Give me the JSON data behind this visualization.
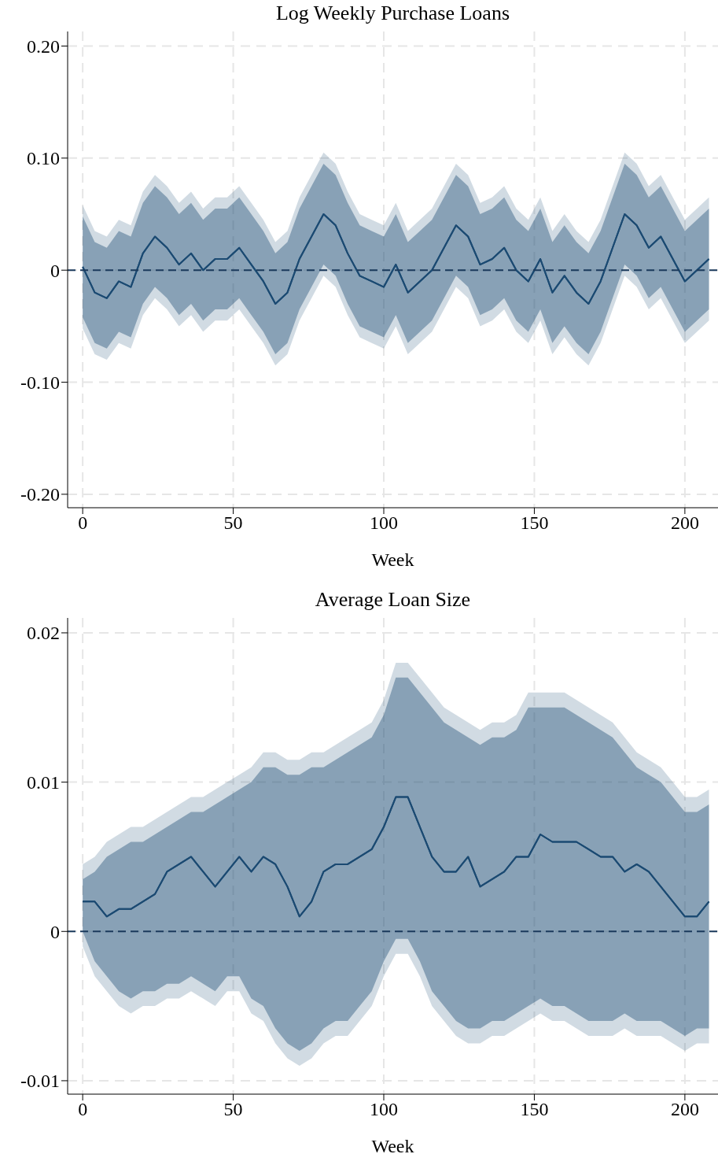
{
  "chart_data": [
    {
      "type": "line",
      "title": "Log Weekly Purchase Loans",
      "xlabel": "Week",
      "grid": true,
      "legend": false,
      "x": [
        0,
        4,
        8,
        12,
        16,
        20,
        24,
        28,
        32,
        36,
        40,
        44,
        48,
        52,
        56,
        60,
        64,
        68,
        72,
        76,
        80,
        84,
        88,
        92,
        96,
        100,
        104,
        108,
        112,
        116,
        120,
        124,
        128,
        132,
        136,
        140,
        144,
        148,
        152,
        156,
        160,
        164,
        168,
        172,
        176,
        180,
        184,
        188,
        192,
        196,
        200,
        204,
        208
      ],
      "xlim": [
        -5,
        211
      ],
      "xticks": [
        0,
        50,
        100,
        150,
        200
      ],
      "ylim": [
        -0.212,
        0.213
      ],
      "yticks": [
        {
          "value": 0.2,
          "label": "0.20"
        },
        {
          "value": 0.1,
          "label": "0.10"
        },
        {
          "value": 0,
          "label": "0"
        },
        {
          "value": -0.1,
          "label": "-0.10"
        },
        {
          "value": -0.2,
          "label": "-0.20"
        }
      ],
      "ref_lines": [
        {
          "axis": "y",
          "value": 0,
          "color": "#1b3a5c",
          "line_style": "dashed"
        }
      ],
      "series": [
        {
          "type": "line",
          "color": "#1b4a72",
          "values": [
            0.003,
            -0.02,
            -0.025,
            -0.01,
            -0.015,
            0.015,
            0.03,
            0.02,
            0.005,
            0.015,
            0,
            0.01,
            0.01,
            0.02,
            0.005,
            -0.01,
            -0.03,
            -0.02,
            0.01,
            0.03,
            0.05,
            0.04,
            0.015,
            -0.005,
            -0.01,
            -0.015,
            0.005,
            -0.02,
            -0.01,
            0,
            0.02,
            0.04,
            0.03,
            0.005,
            0.01,
            0.02,
            0,
            -0.01,
            0.01,
            -0.02,
            -0.005,
            -0.02,
            -0.03,
            -0.01,
            0.02,
            0.05,
            0.04,
            0.02,
            0.03,
            0.01,
            -0.01,
            0,
            0.01
          ],
          "lower": [
            -0.052,
            -0.075,
            -0.08,
            -0.065,
            -0.07,
            -0.04,
            -0.025,
            -0.035,
            -0.05,
            -0.04,
            -0.055,
            -0.045,
            -0.045,
            -0.035,
            -0.05,
            -0.065,
            -0.085,
            -0.075,
            -0.045,
            -0.025,
            -0.005,
            -0.015,
            -0.04,
            -0.06,
            -0.065,
            -0.07,
            -0.05,
            -0.075,
            -0.065,
            -0.055,
            -0.035,
            -0.015,
            -0.025,
            -0.05,
            -0.045,
            -0.035,
            -0.055,
            -0.065,
            -0.045,
            -0.075,
            -0.06,
            -0.075,
            -0.085,
            -0.065,
            -0.035,
            -0.005,
            -0.015,
            -0.035,
            -0.025,
            -0.045,
            -0.065,
            -0.055,
            -0.045
          ],
          "upper": [
            0.058,
            0.035,
            0.03,
            0.045,
            0.04,
            0.07,
            0.085,
            0.075,
            0.06,
            0.07,
            0.055,
            0.065,
            0.065,
            0.075,
            0.06,
            0.045,
            0.025,
            0.035,
            0.065,
            0.085,
            0.105,
            0.095,
            0.07,
            0.05,
            0.045,
            0.04,
            0.06,
            0.035,
            0.045,
            0.055,
            0.075,
            0.095,
            0.085,
            0.06,
            0.065,
            0.075,
            0.055,
            0.045,
            0.065,
            0.035,
            0.05,
            0.035,
            0.025,
            0.045,
            0.075,
            0.105,
            0.095,
            0.075,
            0.085,
            0.065,
            0.045,
            0.055,
            0.065
          ]
        },
        {
          "type": "line",
          "color": "#1b4a72",
          "values": [
            0.003,
            -0.02,
            -0.025,
            -0.01,
            -0.015,
            0.015,
            0.03,
            0.02,
            0.005,
            0.015,
            0,
            0.01,
            0.01,
            0.02,
            0.005,
            -0.01,
            -0.03,
            -0.02,
            0.01,
            0.03,
            0.05,
            0.04,
            0.015,
            -0.005,
            -0.01,
            -0.015,
            0.005,
            -0.02,
            -0.01,
            0,
            0.02,
            0.04,
            0.03,
            0.005,
            0.01,
            0.02,
            0,
            -0.01,
            0.01,
            -0.02,
            -0.005,
            -0.02,
            -0.03,
            -0.01,
            0.02,
            0.05,
            0.04,
            0.02,
            0.03,
            0.01,
            -0.01,
            0,
            0.01
          ],
          "lower": [
            -0.042,
            -0.065,
            -0.07,
            -0.055,
            -0.06,
            -0.03,
            -0.015,
            -0.025,
            -0.04,
            -0.03,
            -0.045,
            -0.035,
            -0.035,
            -0.025,
            -0.04,
            -0.055,
            -0.075,
            -0.065,
            -0.035,
            -0.015,
            0.005,
            -0.005,
            -0.03,
            -0.05,
            -0.055,
            -0.06,
            -0.04,
            -0.065,
            -0.055,
            -0.045,
            -0.025,
            -0.005,
            -0.015,
            -0.04,
            -0.035,
            -0.025,
            -0.045,
            -0.055,
            -0.035,
            -0.065,
            -0.05,
            -0.065,
            -0.075,
            -0.055,
            -0.025,
            0.005,
            -0.005,
            -0.025,
            -0.015,
            -0.035,
            -0.055,
            -0.045,
            -0.035
          ],
          "upper": [
            0.048,
            0.025,
            0.02,
            0.035,
            0.03,
            0.06,
            0.075,
            0.065,
            0.05,
            0.06,
            0.045,
            0.055,
            0.055,
            0.065,
            0.05,
            0.035,
            0.015,
            0.025,
            0.055,
            0.075,
            0.095,
            0.085,
            0.06,
            0.04,
            0.035,
            0.03,
            0.05,
            0.025,
            0.035,
            0.045,
            0.065,
            0.085,
            0.075,
            0.05,
            0.055,
            0.065,
            0.045,
            0.035,
            0.055,
            0.025,
            0.04,
            0.025,
            0.015,
            0.035,
            0.065,
            0.095,
            0.085,
            0.065,
            0.075,
            0.055,
            0.035,
            0.045,
            0.055
          ]
        }
      ]
    },
    {
      "type": "line",
      "title": "Average Loan Size",
      "xlabel": "Week",
      "grid": true,
      "legend": false,
      "x": [
        0,
        4,
        8,
        12,
        16,
        20,
        24,
        28,
        32,
        36,
        40,
        44,
        48,
        52,
        56,
        60,
        64,
        68,
        72,
        76,
        80,
        84,
        88,
        92,
        96,
        100,
        104,
        108,
        112,
        116,
        120,
        124,
        128,
        132,
        136,
        140,
        144,
        148,
        152,
        156,
        160,
        164,
        168,
        172,
        176,
        180,
        184,
        188,
        192,
        196,
        200,
        204,
        208
      ],
      "xlim": [
        -5,
        211
      ],
      "xticks": [
        0,
        50,
        100,
        150,
        200
      ],
      "ylim": [
        -0.0109,
        0.021
      ],
      "yticks": [
        {
          "value": 0.02,
          "label": "0.02"
        },
        {
          "value": 0.01,
          "label": "0.01"
        },
        {
          "value": 0,
          "label": "0"
        },
        {
          "value": -0.01,
          "label": "-0.01"
        }
      ],
      "ref_lines": [
        {
          "axis": "y",
          "value": 0,
          "color": "#1b3a5c",
          "line_style": "dashed"
        }
      ],
      "series": [
        {
          "type": "line",
          "color": "#1b4a72",
          "values": [
            0.002,
            0.002,
            0.001,
            0.0015,
            0.0015,
            0.002,
            0.0025,
            0.004,
            0.0045,
            0.005,
            0.004,
            0.003,
            0.004,
            0.005,
            0.004,
            0.005,
            0.0045,
            0.003,
            0.001,
            0.002,
            0.004,
            0.0045,
            0.0045,
            0.005,
            0.0055,
            0.007,
            0.009,
            0.009,
            0.007,
            0.005,
            0.004,
            0.004,
            0.005,
            0.003,
            0.0035,
            0.004,
            0.005,
            0.005,
            0.0065,
            0.006,
            0.006,
            0.006,
            0.0055,
            0.005,
            0.005,
            0.004,
            0.0045,
            0.004,
            0.003,
            0.002,
            0.001,
            0.001,
            0.002
          ],
          "lower": [
            -0.001,
            -0.003,
            -0.004,
            -0.005,
            -0.0055,
            -0.005,
            -0.005,
            -0.0045,
            -0.0045,
            -0.004,
            -0.0045,
            -0.005,
            -0.004,
            -0.004,
            -0.0055,
            -0.006,
            -0.0075,
            -0.0085,
            -0.009,
            -0.0085,
            -0.0075,
            -0.007,
            -0.007,
            -0.006,
            -0.005,
            -0.003,
            -0.0015,
            -0.0015,
            -0.003,
            -0.005,
            -0.006,
            -0.007,
            -0.0075,
            -0.0075,
            -0.007,
            -0.007,
            -0.0065,
            -0.006,
            -0.0055,
            -0.006,
            -0.006,
            -0.0065,
            -0.007,
            -0.007,
            -0.007,
            -0.0065,
            -0.007,
            -0.007,
            -0.007,
            -0.0075,
            -0.008,
            -0.0075,
            -0.0075
          ],
          "upper": [
            0.0045,
            0.005,
            0.006,
            0.0065,
            0.007,
            0.007,
            0.0075,
            0.008,
            0.0085,
            0.009,
            0.009,
            0.0095,
            0.01,
            0.0105,
            0.011,
            0.012,
            0.012,
            0.0115,
            0.0115,
            0.012,
            0.012,
            0.0125,
            0.013,
            0.0135,
            0.014,
            0.0155,
            0.018,
            0.018,
            0.017,
            0.016,
            0.015,
            0.0145,
            0.014,
            0.0135,
            0.014,
            0.014,
            0.0145,
            0.016,
            0.016,
            0.016,
            0.016,
            0.0155,
            0.015,
            0.0145,
            0.014,
            0.013,
            0.012,
            0.0115,
            0.011,
            0.01,
            0.009,
            0.009,
            0.0095
          ]
        },
        {
          "type": "line",
          "color": "#1b4a72",
          "values": [
            0.002,
            0.002,
            0.001,
            0.0015,
            0.0015,
            0.002,
            0.0025,
            0.004,
            0.0045,
            0.005,
            0.004,
            0.003,
            0.004,
            0.005,
            0.004,
            0.005,
            0.0045,
            0.003,
            0.001,
            0.002,
            0.004,
            0.0045,
            0.0045,
            0.005,
            0.0055,
            0.007,
            0.009,
            0.009,
            0.007,
            0.005,
            0.004,
            0.004,
            0.005,
            0.003,
            0.0035,
            0.004,
            0.005,
            0.005,
            0.0065,
            0.006,
            0.006,
            0.006,
            0.0055,
            0.005,
            0.005,
            0.004,
            0.0045,
            0.004,
            0.003,
            0.002,
            0.001,
            0.001,
            0.002
          ],
          "lower": [
            0,
            -0.002,
            -0.003,
            -0.004,
            -0.0045,
            -0.004,
            -0.004,
            -0.0035,
            -0.0035,
            -0.003,
            -0.0035,
            -0.004,
            -0.003,
            -0.003,
            -0.0045,
            -0.005,
            -0.0065,
            -0.0075,
            -0.008,
            -0.0075,
            -0.0065,
            -0.006,
            -0.006,
            -0.005,
            -0.004,
            -0.002,
            -0.0005,
            -0.0005,
            -0.002,
            -0.004,
            -0.005,
            -0.006,
            -0.0065,
            -0.0065,
            -0.006,
            -0.006,
            -0.0055,
            -0.005,
            -0.0045,
            -0.005,
            -0.005,
            -0.0055,
            -0.006,
            -0.006,
            -0.006,
            -0.0055,
            -0.006,
            -0.006,
            -0.006,
            -0.0065,
            -0.007,
            -0.0065,
            -0.0065
          ],
          "upper": [
            0.0035,
            0.004,
            0.005,
            0.0055,
            0.006,
            0.006,
            0.0065,
            0.007,
            0.0075,
            0.008,
            0.008,
            0.0085,
            0.009,
            0.0095,
            0.01,
            0.011,
            0.011,
            0.0105,
            0.0105,
            0.011,
            0.011,
            0.0115,
            0.012,
            0.0125,
            0.013,
            0.0145,
            0.017,
            0.017,
            0.016,
            0.015,
            0.014,
            0.0135,
            0.013,
            0.0125,
            0.013,
            0.013,
            0.0135,
            0.015,
            0.015,
            0.015,
            0.015,
            0.0145,
            0.014,
            0.0135,
            0.013,
            0.012,
            0.011,
            0.0105,
            0.01,
            0.009,
            0.008,
            0.008,
            0.0085
          ]
        }
      ]
    }
  ]
}
